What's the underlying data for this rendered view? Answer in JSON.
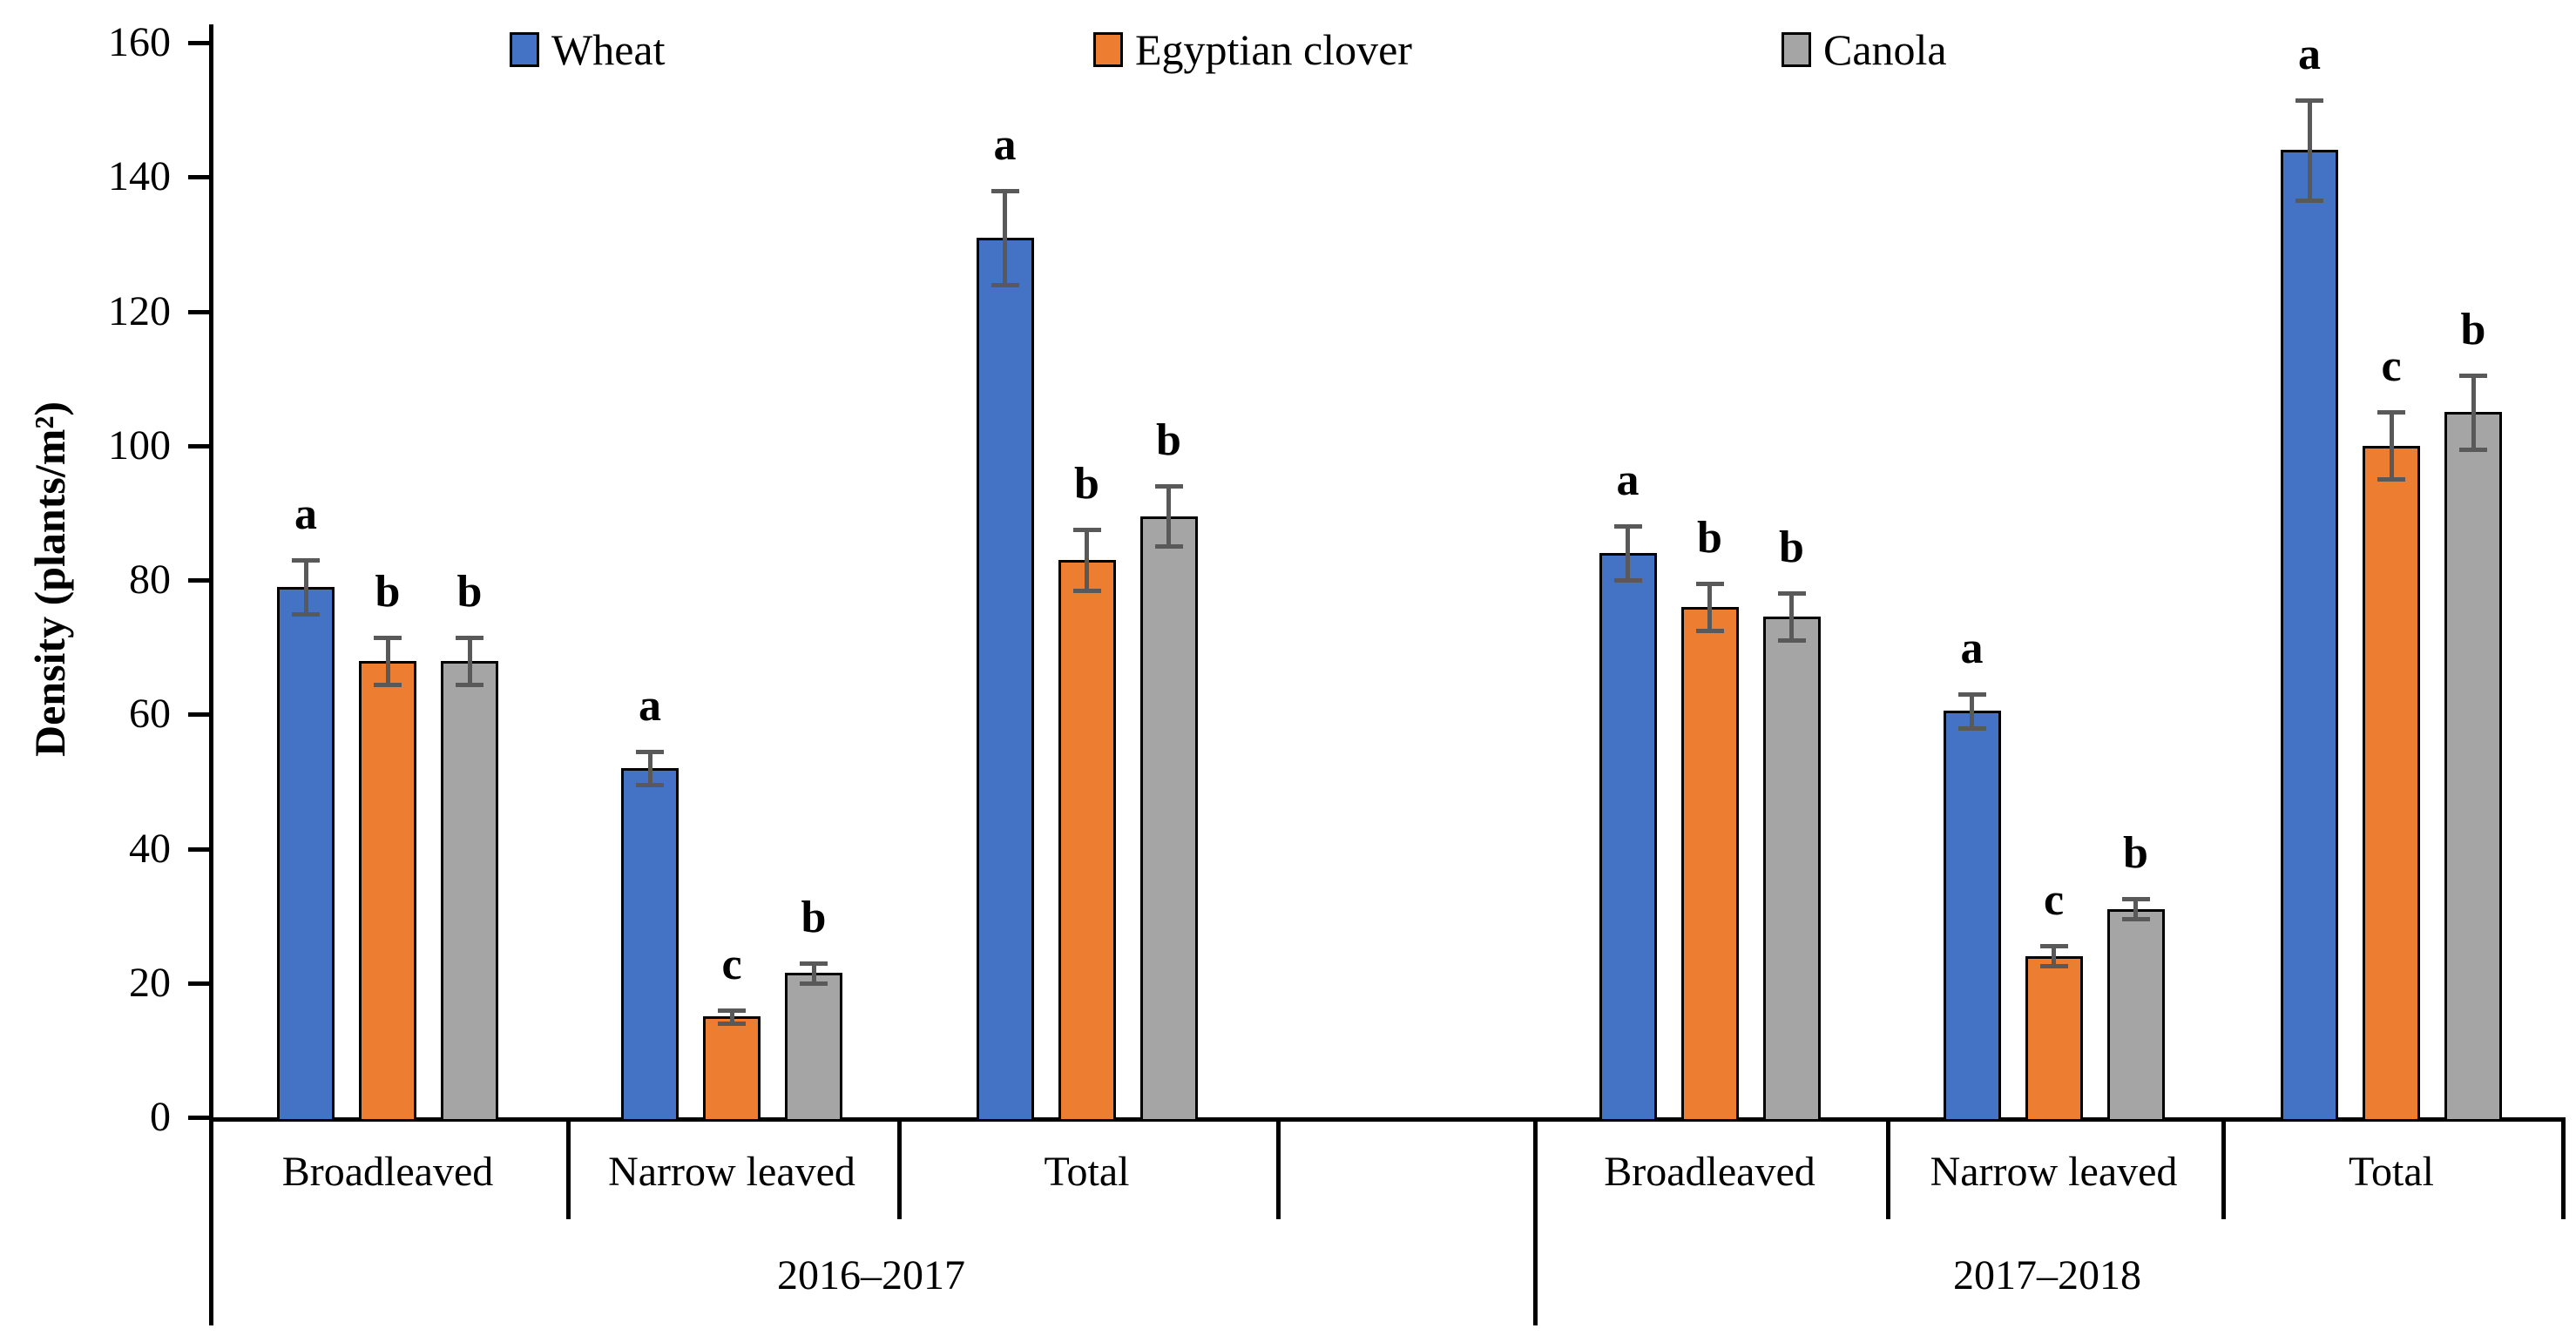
{
  "chart_data": {
    "type": "bar",
    "title": "",
    "xlabel": "",
    "ylabel": "Density (plants/m²)",
    "ylim": [
      0,
      160
    ],
    "ytick_step": 20,
    "yticks": [
      0,
      20,
      40,
      60,
      80,
      100,
      120,
      140,
      160
    ],
    "grid": false,
    "legend_position": "top",
    "error_bars": true,
    "bar_border_color": "#000000",
    "error_bar_color": "#595959",
    "x_groups": {
      "seasons": [
        {
          "label": "2016–2017",
          "categories": [
            "Broadleaved",
            "Narrow leaved",
            "Total"
          ]
        },
        {
          "label": "2017–2018",
          "categories": [
            "Broadleaved",
            "Narrow leaved",
            "Total"
          ]
        }
      ]
    },
    "group_order": [
      "2016–2017 Broadleaved",
      "2016–2017 Narrow leaved",
      "2016–2017 Total",
      "2017–2018 Broadleaved",
      "2017–2018 Narrow leaved",
      "2017–2018 Total"
    ],
    "series": [
      {
        "name": "Wheat",
        "color": "#4472C4",
        "values": [
          79,
          52,
          131,
          84,
          60.5,
          144
        ],
        "errors": [
          4,
          2.5,
          7,
          4,
          2.5,
          7.5
        ],
        "letters": [
          "a",
          "a",
          "a",
          "a",
          "a",
          "a"
        ]
      },
      {
        "name": "Egyptian clover",
        "color": "#ED7D31",
        "values": [
          68,
          15,
          83,
          76,
          24,
          100
        ],
        "errors": [
          3.5,
          1,
          4.5,
          3.5,
          1.5,
          5
        ],
        "letters": [
          "b",
          "c",
          "b",
          "b",
          "c",
          "c"
        ]
      },
      {
        "name": "Canola",
        "color": "#A5A5A5",
        "values": [
          68,
          21.5,
          89.5,
          74.5,
          31,
          105
        ],
        "errors": [
          3.5,
          1.5,
          4.5,
          3.5,
          1.5,
          5.5
        ],
        "letters": [
          "b",
          "b",
          "b",
          "b",
          "b",
          "b"
        ]
      }
    ]
  }
}
